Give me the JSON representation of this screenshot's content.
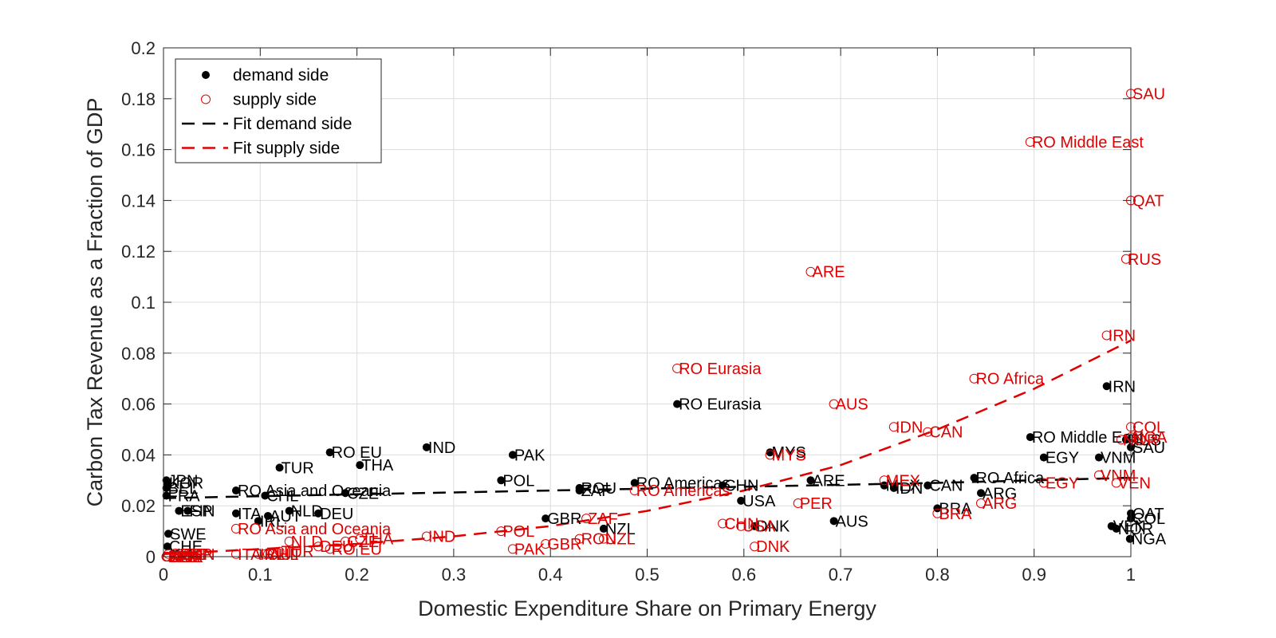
{
  "chart_data": {
    "type": "scatter",
    "xlabel": "Domestic Expenditure Share on Primary Energy",
    "ylabel": "Carbon Tax Revenue as a Fraction of GDP",
    "xlim": [
      0,
      1
    ],
    "ylim": [
      0,
      0.2
    ],
    "xticks": [
      "0",
      "0.1",
      "0.2",
      "0.3",
      "0.4",
      "0.5",
      "0.6",
      "0.7",
      "0.8",
      "0.9",
      "1"
    ],
    "yticks": [
      "0",
      "0.02",
      "0.04",
      "0.06",
      "0.08",
      "0.1",
      "0.12",
      "0.14",
      "0.16",
      "0.18",
      "0.2"
    ],
    "grid": true,
    "legend_position": "top-left",
    "colors": {
      "demand": "#000000",
      "supply": "#e00000",
      "grid": "#dcdcdc",
      "axis": "#262626"
    },
    "legend": [
      "demand side",
      "supply side",
      "Fit demand side",
      "Fit supply side"
    ],
    "series": [
      {
        "name": "demand side",
        "marker": "filled-dot",
        "points": [
          {
            "label": "JPN",
            "x": 0.003,
            "y": 0.03
          },
          {
            "label": "KOR",
            "x": 0.004,
            "y": 0.029
          },
          {
            "label": "BEL",
            "x": 0.003,
            "y": 0.027
          },
          {
            "label": "FRA",
            "x": 0.003,
            "y": 0.024
          },
          {
            "label": "ESP",
            "x": 0.016,
            "y": 0.018
          },
          {
            "label": "FIN",
            "x": 0.025,
            "y": 0.018
          },
          {
            "label": "SWE",
            "x": 0.005,
            "y": 0.009
          },
          {
            "label": "CHE",
            "x": 0.004,
            "y": 0.004
          },
          {
            "label": "ITA",
            "x": 0.075,
            "y": 0.017
          },
          {
            "label": "RO Asia and Oceania",
            "x": 0.075,
            "y": 0.026
          },
          {
            "label": "CHL",
            "x": 0.105,
            "y": 0.024
          },
          {
            "label": "AUT",
            "x": 0.108,
            "y": 0.016
          },
          {
            "label": "IRL",
            "x": 0.098,
            "y": 0.014
          },
          {
            "label": "NLD",
            "x": 0.13,
            "y": 0.018
          },
          {
            "label": "TUR",
            "x": 0.12,
            "y": 0.035
          },
          {
            "label": "DEU",
            "x": 0.16,
            "y": 0.017
          },
          {
            "label": "CZE",
            "x": 0.188,
            "y": 0.025
          },
          {
            "label": "RO EU",
            "x": 0.172,
            "y": 0.041
          },
          {
            "label": "THA",
            "x": 0.203,
            "y": 0.036
          },
          {
            "label": "IND",
            "x": 0.272,
            "y": 0.043
          },
          {
            "label": "POL",
            "x": 0.349,
            "y": 0.03
          },
          {
            "label": "PAK",
            "x": 0.361,
            "y": 0.04
          },
          {
            "label": "GBR",
            "x": 0.395,
            "y": 0.015
          },
          {
            "label": "ZAF",
            "x": 0.43,
            "y": 0.026
          },
          {
            "label": "ROU",
            "x": 0.43,
            "y": 0.027
          },
          {
            "label": "NZL",
            "x": 0.455,
            "y": 0.011
          },
          {
            "label": "RO Americas",
            "x": 0.487,
            "y": 0.029
          },
          {
            "label": "RO Eurasia",
            "x": 0.531,
            "y": 0.06
          },
          {
            "label": "CHN",
            "x": 0.578,
            "y": 0.028
          },
          {
            "label": "USA",
            "x": 0.597,
            "y": 0.022
          },
          {
            "label": "DNK",
            "x": 0.611,
            "y": 0.012
          },
          {
            "label": "MYS",
            "x": 0.627,
            "y": 0.041
          },
          {
            "label": "ARE",
            "x": 0.669,
            "y": 0.03
          },
          {
            "label": "AUS",
            "x": 0.693,
            "y": 0.014
          },
          {
            "label": "MEX",
            "x": 0.745,
            "y": 0.028
          },
          {
            "label": "IDN",
            "x": 0.755,
            "y": 0.027
          },
          {
            "label": "CAN",
            "x": 0.79,
            "y": 0.028
          },
          {
            "label": "BRA",
            "x": 0.8,
            "y": 0.019
          },
          {
            "label": "RO Africa",
            "x": 0.838,
            "y": 0.031
          },
          {
            "label": "ARG",
            "x": 0.845,
            "y": 0.025
          },
          {
            "label": "RO Middle East",
            "x": 0.896,
            "y": 0.047
          },
          {
            "label": "EGY",
            "x": 0.91,
            "y": 0.039
          },
          {
            "label": "VNM",
            "x": 0.967,
            "y": 0.039
          },
          {
            "label": "IRN",
            "x": 0.975,
            "y": 0.067
          },
          {
            "label": "RUS",
            "x": 0.995,
            "y": 0.046
          },
          {
            "label": "SAU",
            "x": 1.0,
            "y": 0.043
          },
          {
            "label": "QAT",
            "x": 1.0,
            "y": 0.017
          },
          {
            "label": "COL",
            "x": 1.0,
            "y": 0.015
          },
          {
            "label": "VEN",
            "x": 0.98,
            "y": 0.012
          },
          {
            "label": "NOR",
            "x": 0.985,
            "y": 0.011
          },
          {
            "label": "NGA",
            "x": 0.999,
            "y": 0.007
          }
        ]
      },
      {
        "name": "supply side",
        "marker": "open-circle",
        "points": [
          {
            "label": "SAU",
            "x": 1.0,
            "y": 0.182
          },
          {
            "label": "RO Middle East",
            "x": 0.896,
            "y": 0.163
          },
          {
            "label": "QAT",
            "x": 1.0,
            "y": 0.14
          },
          {
            "label": "RUS",
            "x": 0.995,
            "y": 0.117
          },
          {
            "label": "ARE",
            "x": 0.669,
            "y": 0.112
          },
          {
            "label": "IRN",
            "x": 0.975,
            "y": 0.087
          },
          {
            "label": "RO Eurasia",
            "x": 0.531,
            "y": 0.074
          },
          {
            "label": "RO Africa",
            "x": 0.838,
            "y": 0.07
          },
          {
            "label": "AUS",
            "x": 0.693,
            "y": 0.06
          },
          {
            "label": "IDN",
            "x": 0.755,
            "y": 0.051
          },
          {
            "label": "CAN",
            "x": 0.79,
            "y": 0.049
          },
          {
            "label": "COL",
            "x": 1.0,
            "y": 0.051
          },
          {
            "label": "NGA",
            "x": 1.0,
            "y": 0.047
          },
          {
            "label": "NOR",
            "x": 0.99,
            "y": 0.046
          },
          {
            "label": "MYS",
            "x": 0.627,
            "y": 0.04
          },
          {
            "label": "MEX",
            "x": 0.745,
            "y": 0.03
          },
          {
            "label": "EGY",
            "x": 0.91,
            "y": 0.029
          },
          {
            "label": "VNM",
            "x": 0.967,
            "y": 0.032
          },
          {
            "label": "VEN",
            "x": 0.985,
            "y": 0.029
          },
          {
            "label": "RO Americas",
            "x": 0.487,
            "y": 0.026
          },
          {
            "label": "PER",
            "x": 0.656,
            "y": 0.021
          },
          {
            "label": "ARG",
            "x": 0.845,
            "y": 0.021
          },
          {
            "label": "BRA",
            "x": 0.8,
            "y": 0.017
          },
          {
            "label": "ZAF",
            "x": 0.437,
            "y": 0.015
          },
          {
            "label": "CHN",
            "x": 0.578,
            "y": 0.013
          },
          {
            "label": "USA",
            "x": 0.597,
            "y": 0.012
          },
          {
            "label": "DNK",
            "x": 0.611,
            "y": 0.004
          },
          {
            "label": "POL",
            "x": 0.349,
            "y": 0.01
          },
          {
            "label": "IND",
            "x": 0.272,
            "y": 0.008
          },
          {
            "label": "RO Asia and Oceania",
            "x": 0.075,
            "y": 0.011
          },
          {
            "label": "ROU",
            "x": 0.43,
            "y": 0.007
          },
          {
            "label": "NZL",
            "x": 0.455,
            "y": 0.007
          },
          {
            "label": "GBR",
            "x": 0.395,
            "y": 0.005
          },
          {
            "label": "PAK",
            "x": 0.361,
            "y": 0.003
          },
          {
            "label": "THA",
            "x": 0.203,
            "y": 0.007
          },
          {
            "label": "CZE",
            "x": 0.188,
            "y": 0.006
          },
          {
            "label": "NLD",
            "x": 0.13,
            "y": 0.006
          },
          {
            "label": "DEU",
            "x": 0.16,
            "y": 0.004
          },
          {
            "label": "RO EU",
            "x": 0.172,
            "y": 0.003
          },
          {
            "label": "TUR",
            "x": 0.12,
            "y": 0.002
          },
          {
            "label": "CHL",
            "x": 0.105,
            "y": 0.001
          },
          {
            "label": "AUT",
            "x": 0.108,
            "y": 0.001
          },
          {
            "label": "IRL",
            "x": 0.098,
            "y": 0.001
          },
          {
            "label": "ITA",
            "x": 0.075,
            "y": 0.001
          },
          {
            "label": "FIN",
            "x": 0.025,
            "y": 0.001
          },
          {
            "label": "ESP",
            "x": 0.016,
            "y": 0.001
          },
          {
            "label": "SWE",
            "x": 0.005,
            "y": 0.001
          },
          {
            "label": "CHE",
            "x": 0.004,
            "y": 0.0
          },
          {
            "label": "BEL",
            "x": 0.003,
            "y": 0.0
          },
          {
            "label": "FRA",
            "x": 0.003,
            "y": 0.0
          },
          {
            "label": "KOR",
            "x": 0.004,
            "y": 0.0
          },
          {
            "label": "JPN",
            "x": 0.003,
            "y": 0.0
          }
        ]
      }
    ],
    "fits": [
      {
        "name": "Fit demand side",
        "style": "dashed",
        "x": [
          0,
          0.2,
          0.4,
          0.6,
          0.8,
          1.0
        ],
        "y": [
          0.023,
          0.0245,
          0.026,
          0.0275,
          0.029,
          0.031
        ]
      },
      {
        "name": "Fit supply side",
        "style": "dashed",
        "x": [
          0,
          0.1,
          0.2,
          0.3,
          0.4,
          0.5,
          0.6,
          0.7,
          0.8,
          0.9,
          1.0
        ],
        "y": [
          0.001,
          0.003,
          0.005,
          0.008,
          0.012,
          0.018,
          0.026,
          0.036,
          0.05,
          0.066,
          0.085
        ]
      }
    ]
  }
}
